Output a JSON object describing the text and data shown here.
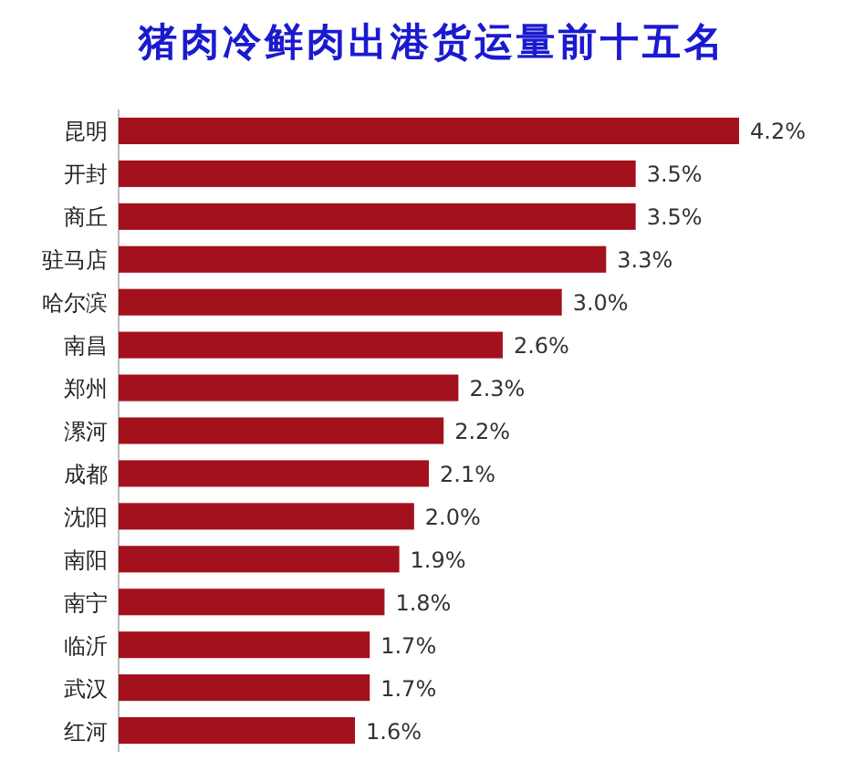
{
  "chart_data": {
    "type": "bar",
    "orientation": "horizontal",
    "title": "猪肉冷鲜肉出港货运量前十五名",
    "categories": [
      "昆明",
      "开封",
      "商丘",
      "驻马店",
      "哈尔滨",
      "南昌",
      "郑州",
      "漯河",
      "成都",
      "沈阳",
      "南阳",
      "南宁",
      "临沂",
      "武汉",
      "红河"
    ],
    "values": [
      4.2,
      3.5,
      3.5,
      3.3,
      3.0,
      2.6,
      2.3,
      2.2,
      2.1,
      2.0,
      1.9,
      1.8,
      1.7,
      1.7,
      1.6
    ],
    "value_labels": [
      "4.2%",
      "3.5%",
      "3.5%",
      "3.3%",
      "3.0%",
      "2.6%",
      "2.3%",
      "2.2%",
      "2.1%",
      "2.0%",
      "1.9%",
      "1.8%",
      "1.7%",
      "1.7%",
      "1.6%"
    ],
    "color": "#a3111d"
  }
}
